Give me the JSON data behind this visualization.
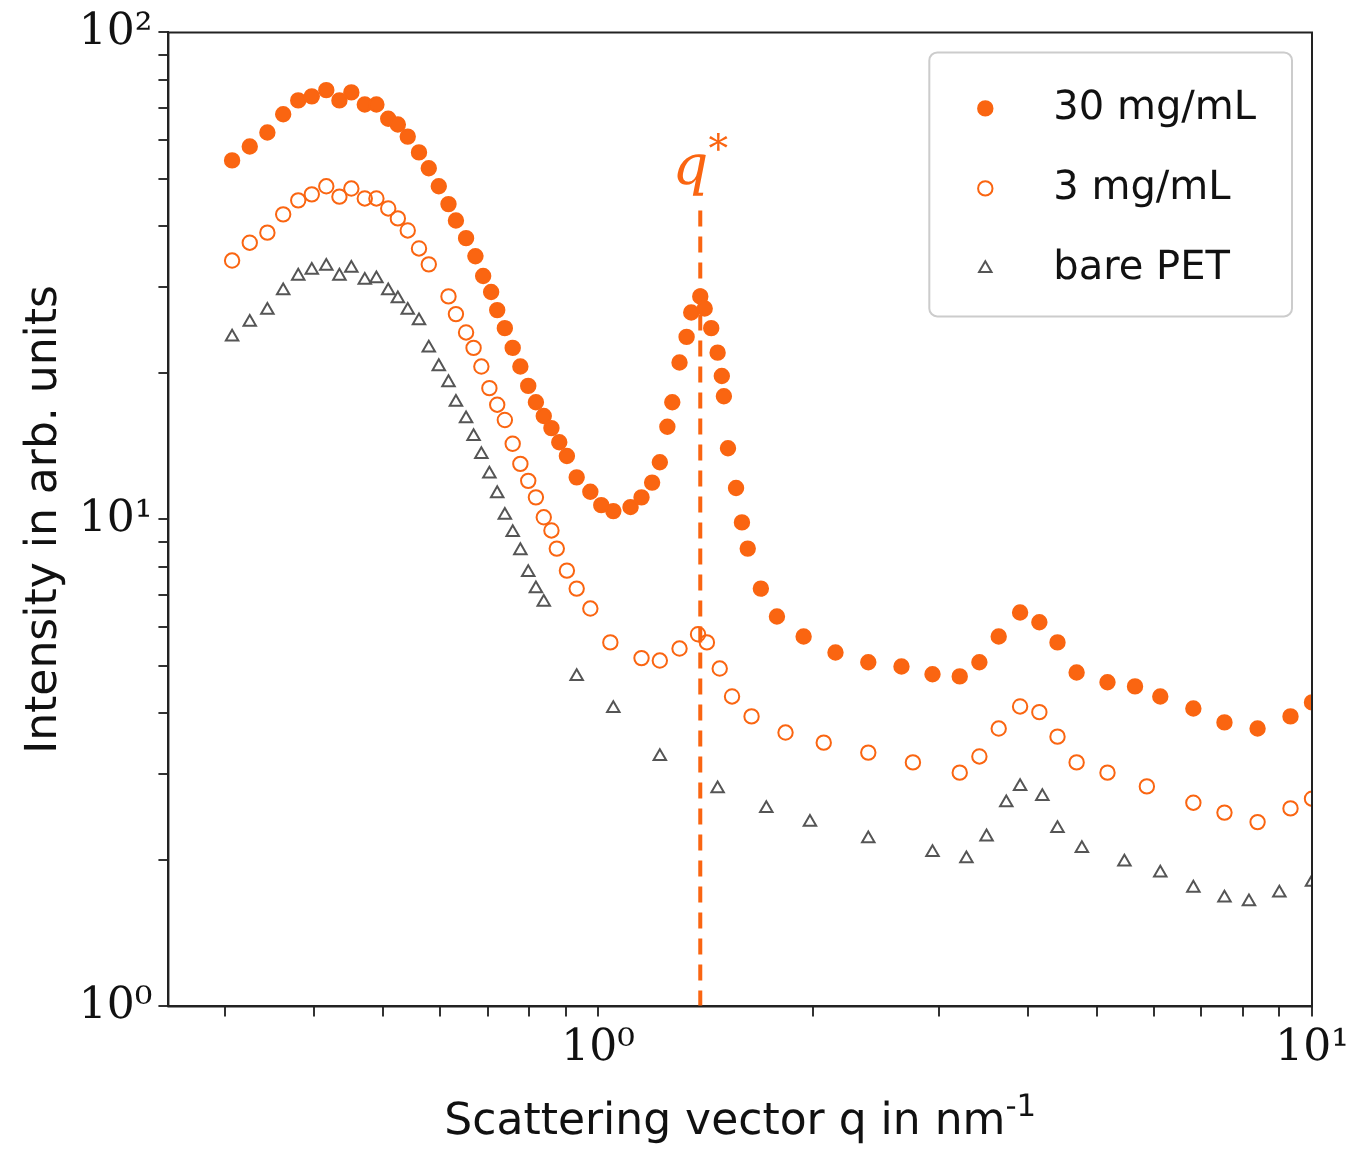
{
  "chart_data": {
    "type": "scatter",
    "xlabel": "Scattering vector q in nm$^{-1}$",
    "ylabel": "Intensity in arb. units",
    "log": "xy",
    "grid": false,
    "legend": "top right",
    "xlim": [
      0.25,
      10
    ],
    "ylim": [
      1,
      100
    ],
    "xticks": [
      {
        "value": 0.3,
        "label": null
      },
      {
        "value": 0.4,
        "label": null
      },
      {
        "value": 0.5,
        "label": null
      },
      {
        "value": 0.6,
        "label": null
      },
      {
        "value": 0.7,
        "label": null
      },
      {
        "value": 0.8,
        "label": null
      },
      {
        "value": 0.9,
        "label": null
      },
      {
        "value": 1,
        "label": "10⁰"
      },
      {
        "value": 2,
        "label": null
      },
      {
        "value": 3,
        "label": null
      },
      {
        "value": 4,
        "label": null
      },
      {
        "value": 5,
        "label": null
      },
      {
        "value": 6,
        "label": null
      },
      {
        "value": 7,
        "label": null
      },
      {
        "value": 8,
        "label": null
      },
      {
        "value": 9,
        "label": null
      },
      {
        "value": 10,
        "label": "10¹"
      }
    ],
    "yticks": [
      {
        "value": 1,
        "label": "10⁰"
      },
      {
        "value": 2,
        "label": null
      },
      {
        "value": 3,
        "label": null
      },
      {
        "value": 4,
        "label": null
      },
      {
        "value": 5,
        "label": null
      },
      {
        "value": 6,
        "label": null
      },
      {
        "value": 7,
        "label": null
      },
      {
        "value": 8,
        "label": null
      },
      {
        "value": 9,
        "label": null
      },
      {
        "value": 10,
        "label": "10¹"
      },
      {
        "value": 20,
        "label": null
      },
      {
        "value": 30,
        "label": null
      },
      {
        "value": 40,
        "label": null
      },
      {
        "value": 50,
        "label": null
      },
      {
        "value": 60,
        "label": null
      },
      {
        "value": 70,
        "label": null
      },
      {
        "value": 80,
        "label": null
      },
      {
        "value": 90,
        "label": null
      },
      {
        "value": 100,
        "label": "10²"
      }
    ],
    "ref_lines": [
      {
        "axis": "x",
        "value": 1.39,
        "label": "q$^{*}$",
        "color": "#fa6511",
        "line_style": "dashed"
      }
    ],
    "series": [
      {
        "name": "30 mg/mL",
        "color": "#fa6511",
        "marker": "circle",
        "x": [
          0.307,
          0.325,
          0.344,
          0.362,
          0.38,
          0.397,
          0.416,
          0.434,
          0.451,
          0.471,
          0.489,
          0.508,
          0.524,
          0.541,
          0.561,
          0.579,
          0.598,
          0.617,
          0.632,
          0.653,
          0.673,
          0.69,
          0.708,
          0.722,
          0.74,
          0.759,
          0.778,
          0.798,
          0.818,
          0.839,
          0.86,
          0.882,
          0.904,
          0.933,
          0.975,
          1.01,
          1.05,
          1.11,
          1.15,
          1.19,
          1.22,
          1.25,
          1.27,
          1.3,
          1.33,
          1.35,
          1.39,
          1.41,
          1.44,
          1.47,
          1.49,
          1.5,
          1.52,
          1.56,
          1.59,
          1.62,
          1.69,
          1.78,
          1.94,
          2.15,
          2.39,
          2.66,
          2.94,
          3.21,
          3.42,
          3.64,
          3.9,
          4.15,
          4.4,
          4.68,
          5.17,
          5.65,
          6.13,
          6.82,
          7.54,
          8.39,
          9.33,
          10
        ],
        "values": [
          54.6,
          58.3,
          62.3,
          67.9,
          72.5,
          73.9,
          76.1,
          72.5,
          75.3,
          71.1,
          71.1,
          66.5,
          64.7,
          61.1,
          56.7,
          52.6,
          48.3,
          44.4,
          41.1,
          37.8,
          34.7,
          31.6,
          29.3,
          26.9,
          24.7,
          22.5,
          20.6,
          18.8,
          17.4,
          16.3,
          15.4,
          14.4,
          13.5,
          12.2,
          11.4,
          10.7,
          10.4,
          10.6,
          11.1,
          11.9,
          13.1,
          15.5,
          17.4,
          21.0,
          23.7,
          26.6,
          28.7,
          27.1,
          24.7,
          22.0,
          19.7,
          17.9,
          14.0,
          11.6,
          9.86,
          8.71,
          7.21,
          6.32,
          5.75,
          5.33,
          5.09,
          4.99,
          4.81,
          4.76,
          5.09,
          5.75,
          6.44,
          6.15,
          5.59,
          4.85,
          4.63,
          4.54,
          4.33,
          4.09,
          3.83,
          3.72,
          3.94,
          4.21
        ]
      },
      {
        "name": "3 mg/mL",
        "color": "#fa6511",
        "marker": "circle",
        "x": [
          0.307,
          0.325,
          0.344,
          0.362,
          0.38,
          0.397,
          0.416,
          0.434,
          0.451,
          0.471,
          0.489,
          0.508,
          0.524,
          0.541,
          0.561,
          0.579,
          0.617,
          0.632,
          0.653,
          0.669,
          0.686,
          0.704,
          0.722,
          0.74,
          0.759,
          0.778,
          0.798,
          0.818,
          0.839,
          0.86,
          0.875,
          0.904,
          0.933,
          0.975,
          1.04,
          1.15,
          1.22,
          1.3,
          1.38,
          1.42,
          1.48,
          1.54,
          1.64,
          1.83,
          2.07,
          2.39,
          2.76,
          3.21,
          3.42,
          3.64,
          3.9,
          4.15,
          4.4,
          4.68,
          5.17,
          5.87,
          6.82,
          7.54,
          8.39,
          9.33,
          10
        ],
        "values": [
          34.0,
          37.0,
          38.8,
          42.3,
          45.2,
          46.5,
          48.3,
          46.0,
          47.8,
          45.6,
          45.6,
          43.5,
          41.5,
          39.2,
          36.0,
          33.4,
          28.7,
          26.4,
          24.2,
          22.5,
          20.6,
          18.6,
          17.2,
          16.0,
          14.3,
          13.0,
          12.0,
          11.1,
          10.1,
          9.49,
          8.71,
          7.85,
          7.21,
          6.56,
          5.59,
          5.19,
          5.13,
          5.43,
          5.81,
          5.59,
          4.94,
          4.33,
          3.94,
          3.65,
          3.48,
          3.32,
          3.17,
          3.02,
          3.26,
          3.72,
          4.13,
          4.02,
          3.58,
          3.17,
          3.02,
          2.83,
          2.62,
          2.5,
          2.39,
          2.55,
          2.67
        ]
      },
      {
        "name": "bare PET",
        "color": "#555555",
        "marker": "triangle",
        "x": [
          0.307,
          0.325,
          0.344,
          0.362,
          0.38,
          0.397,
          0.416,
          0.434,
          0.451,
          0.471,
          0.489,
          0.508,
          0.524,
          0.541,
          0.561,
          0.579,
          0.598,
          0.617,
          0.632,
          0.653,
          0.669,
          0.686,
          0.704,
          0.722,
          0.74,
          0.759,
          0.778,
          0.798,
          0.818,
          0.839,
          0.933,
          1.05,
          1.22,
          1.47,
          1.72,
          1.98,
          2.39,
          2.94,
          3.28,
          3.5,
          3.73,
          3.9,
          4.19,
          4.4,
          4.76,
          5.46,
          6.13,
          6.82,
          7.54,
          8.16,
          9.0,
          10
        ],
        "values": [
          23.7,
          25.4,
          26.9,
          29.5,
          31.6,
          32.5,
          33.1,
          31.6,
          32.8,
          31.0,
          31.2,
          29.5,
          28.4,
          26.9,
          25.6,
          22.5,
          20.6,
          19.1,
          17.4,
          16.1,
          14.8,
          13.6,
          12.4,
          11.3,
          10.2,
          9.4,
          8.63,
          7.78,
          7.21,
          6.76,
          4.76,
          4.09,
          3.26,
          2.8,
          2.55,
          2.39,
          2.21,
          2.07,
          2.01,
          2.23,
          2.62,
          2.83,
          2.7,
          2.32,
          2.11,
          1.98,
          1.88,
          1.75,
          1.67,
          1.64,
          1.71,
          1.8
        ]
      }
    ]
  }
}
